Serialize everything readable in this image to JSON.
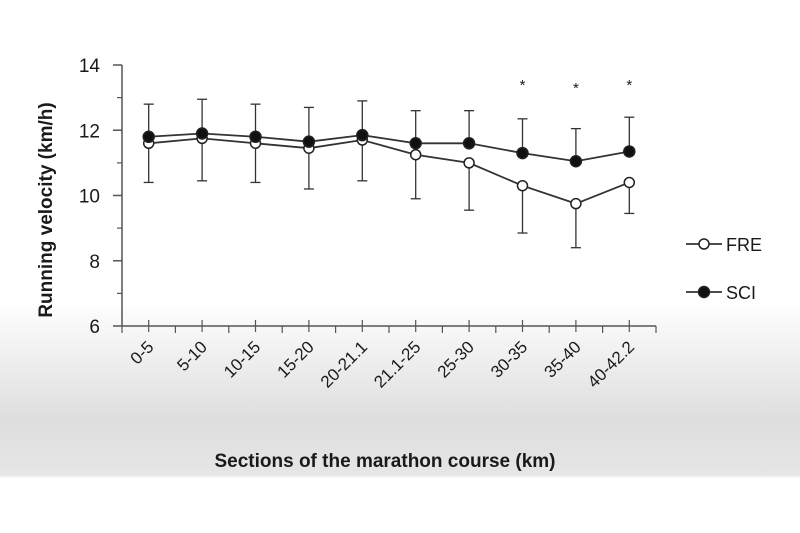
{
  "chart_data": {
    "type": "line",
    "title": "",
    "xlabel": "Sections of the marathon course (km)",
    "ylabel": "Running velocity (km/h)",
    "ylim": [
      6,
      14
    ],
    "yticks": [
      6,
      8,
      10,
      12,
      14
    ],
    "categories": [
      "0-5",
      "5-10",
      "10-15",
      "15-20",
      "20-21.1",
      "21.1-25",
      "25-30",
      "30-35",
      "35-40",
      "40-42.2"
    ],
    "series": [
      {
        "name": "FRE",
        "marker": "open-circle",
        "values": [
          11.6,
          11.75,
          11.6,
          11.45,
          11.7,
          11.25,
          11.0,
          10.3,
          9.75,
          10.4
        ],
        "error": [
          1.2,
          1.3,
          1.2,
          1.25,
          1.25,
          1.35,
          1.45,
          1.45,
          1.35,
          0.95
        ]
      },
      {
        "name": "SCI",
        "marker": "filled-circle",
        "values": [
          11.8,
          11.9,
          11.8,
          11.65,
          11.85,
          11.6,
          11.6,
          11.3,
          11.05,
          11.35
        ],
        "error": [
          1.0,
          1.05,
          1.0,
          1.05,
          1.05,
          1.0,
          1.0,
          1.05,
          1.0,
          1.05
        ]
      }
    ],
    "significance": [
      {
        "category": "30-35",
        "label": "*"
      },
      {
        "category": "35-40",
        "label": "*"
      },
      {
        "category": "40-42.2",
        "label": "*"
      }
    ],
    "legend_position": "right",
    "grid": false,
    "colors": {
      "line": "#333333",
      "axis": "#555555",
      "text": "#1a1a1a"
    }
  }
}
